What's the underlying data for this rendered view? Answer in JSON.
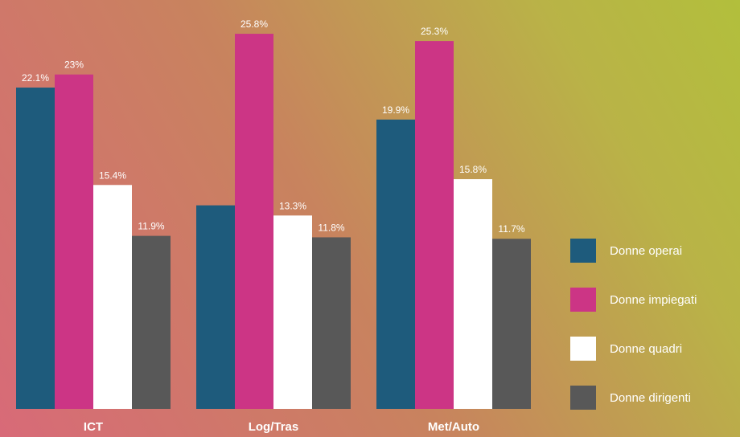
{
  "chart_data": {
    "type": "bar",
    "categories": [
      "ICT",
      "Log/Tras",
      "Met/Auto"
    ],
    "series": [
      {
        "name": "Donne operai",
        "color": "#1e5b7c",
        "values": [
          22.1,
          14.0,
          19.9
        ],
        "labels": [
          "22.1%",
          "",
          "19.9%"
        ]
      },
      {
        "name": "Donne impiegati",
        "color": "#cc3585",
        "values": [
          23,
          25.8,
          25.3
        ],
        "labels": [
          "23%",
          "25.8%",
          "25.3%"
        ]
      },
      {
        "name": "Donne quadri",
        "color": "#ffffff",
        "values": [
          15.4,
          13.3,
          15.8
        ],
        "labels": [
          "15.4%",
          "13.3%",
          "15.8%"
        ]
      },
      {
        "name": "Donne dirigenti",
        "color": "#585858",
        "values": [
          11.9,
          11.8,
          11.7
        ],
        "labels": [
          "11.9%",
          "11.8%",
          "11.7%"
        ]
      }
    ],
    "ylim": [
      0,
      26.3
    ],
    "legend_position": "right",
    "grid": false
  }
}
